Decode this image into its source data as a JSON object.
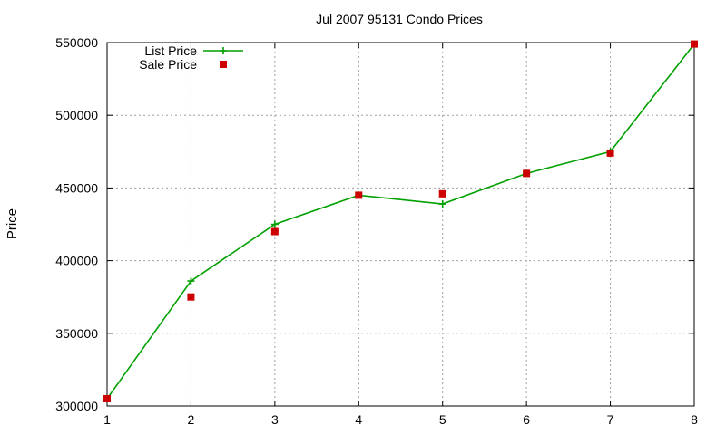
{
  "chart_data": {
    "type": "line",
    "title": "Jul 2007 95131 Condo Prices",
    "xlabel": "",
    "ylabel": "Price",
    "xlim": [
      1,
      8
    ],
    "ylim": [
      300000,
      550000
    ],
    "x_ticks": [
      "1",
      "2",
      "3",
      "4",
      "5",
      "6",
      "7",
      "8"
    ],
    "y_ticks": [
      "300000",
      "350000",
      "400000",
      "450000",
      "500000",
      "550000"
    ],
    "grid": true,
    "legend_position": "top-left",
    "series": [
      {
        "name": "List Price",
        "style": "lines+points",
        "marker": "plus",
        "color": "#00a000",
        "x": [
          1,
          2,
          3,
          4,
          5,
          6,
          7,
          8
        ],
        "y": [
          305000,
          386000,
          425000,
          445000,
          439000,
          460000,
          475000,
          549000
        ]
      },
      {
        "name": "Sale Price",
        "style": "points",
        "marker": "square",
        "color": "#cc0000",
        "x": [
          1,
          2,
          3,
          4,
          5,
          6,
          7,
          8
        ],
        "y": [
          305000,
          375000,
          420000,
          445000,
          446000,
          460000,
          474000,
          549000
        ]
      }
    ]
  }
}
